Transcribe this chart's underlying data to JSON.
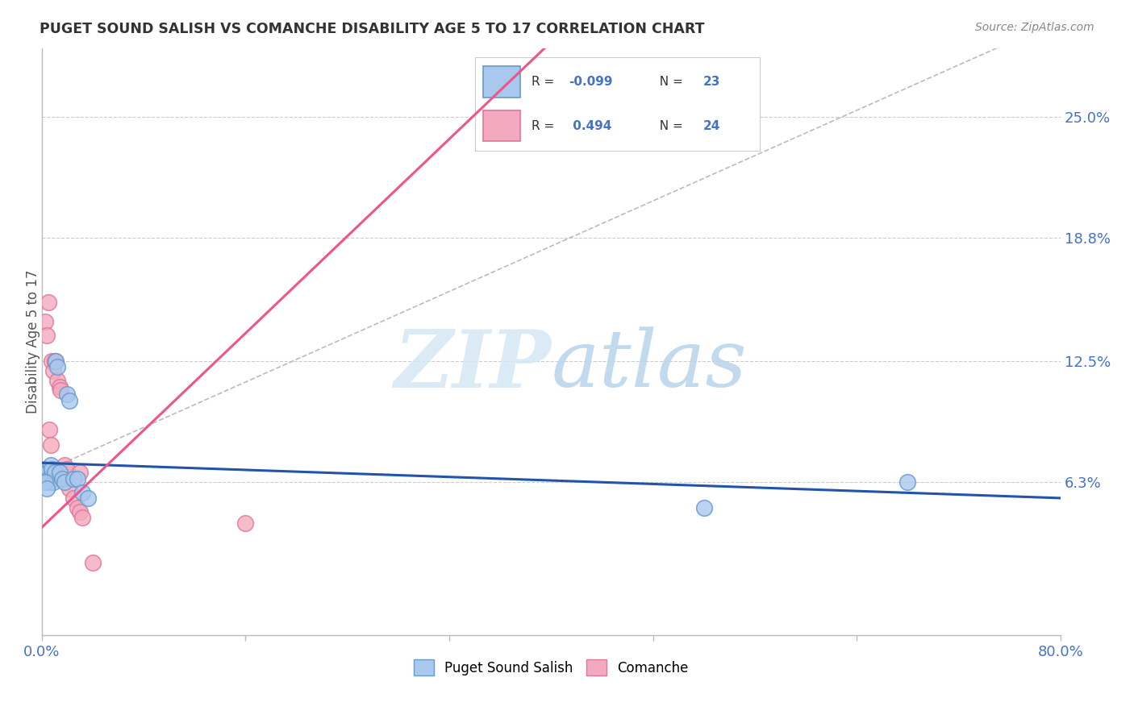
{
  "title": "PUGET SOUND SALISH VS COMANCHE DISABILITY AGE 5 TO 17 CORRELATION CHART",
  "source": "Source: ZipAtlas.com",
  "ylabel": "Disability Age 5 to 17",
  "xlim": [
    0.0,
    0.8
  ],
  "ylim": [
    -0.015,
    0.285
  ],
  "blue_R": "-0.099",
  "blue_N": "23",
  "pink_R": "0.494",
  "pink_N": "24",
  "blue_color": "#A8C8ED",
  "pink_color": "#F4AABE",
  "blue_edge": "#6699CC",
  "pink_edge": "#DD7799",
  "blue_line_color": "#2255AA",
  "pink_line_color": "#EE5588",
  "watermark_zip_color": "#D5E8F5",
  "watermark_atlas_color": "#B8D4EC",
  "grid_color": "#CCCCCC",
  "title_color": "#333333",
  "source_color": "#888888",
  "axis_color": "#4472C4",
  "blue_scatter_x": [
    0.003,
    0.004,
    0.005,
    0.006,
    0.007,
    0.008,
    0.009,
    0.01,
    0.011,
    0.012,
    0.014,
    0.016,
    0.018,
    0.02,
    0.022,
    0.025,
    0.028,
    0.032,
    0.036,
    0.003,
    0.004,
    0.52,
    0.68
  ],
  "blue_scatter_y": [
    0.07,
    0.068,
    0.065,
    0.063,
    0.072,
    0.07,
    0.063,
    0.068,
    0.125,
    0.122,
    0.068,
    0.065,
    0.063,
    0.108,
    0.105,
    0.065,
    0.065,
    0.058,
    0.055,
    0.063,
    0.06,
    0.05,
    0.063
  ],
  "pink_scatter_x": [
    0.003,
    0.004,
    0.006,
    0.007,
    0.008,
    0.009,
    0.01,
    0.012,
    0.014,
    0.016,
    0.018,
    0.02,
    0.022,
    0.025,
    0.028,
    0.03,
    0.032,
    0.005,
    0.01,
    0.015,
    0.02,
    0.03,
    0.04,
    0.16
  ],
  "pink_scatter_y": [
    0.145,
    0.138,
    0.09,
    0.082,
    0.125,
    0.12,
    0.125,
    0.115,
    0.112,
    0.068,
    0.072,
    0.065,
    0.06,
    0.055,
    0.05,
    0.048,
    0.045,
    0.155,
    0.125,
    0.11,
    0.07,
    0.068,
    0.022,
    0.042
  ],
  "blue_line_x": [
    0.0,
    0.8
  ],
  "blue_line_y": [
    0.073,
    0.055
  ],
  "pink_line_x": [
    0.0,
    0.395
  ],
  "pink_line_y": [
    0.04,
    0.285
  ],
  "diag_line_x": [
    0.0,
    0.75
  ],
  "diag_line_y": [
    0.068,
    0.285
  ],
  "ytick_positions": [
    0.063,
    0.125,
    0.188,
    0.25
  ],
  "ytick_labels": [
    "6.3%",
    "12.5%",
    "18.8%",
    "25.0%"
  ],
  "xtick_positions": [
    0.0,
    0.16,
    0.32,
    0.48,
    0.64,
    0.8
  ]
}
